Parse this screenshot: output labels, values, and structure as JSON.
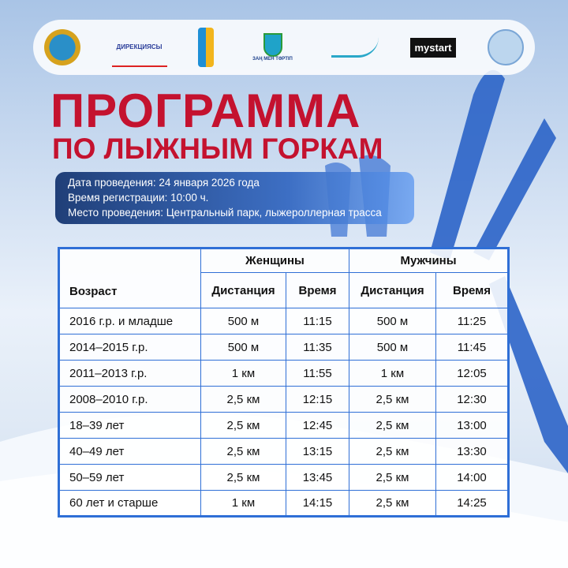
{
  "logos": [
    "Astana emblem",
    "ДИРЕКЦИЯСЫ",
    "snowflake sun",
    "ЗАҢ МЕН ТӘРТІП",
    "Cross Country Skiing Federation",
    "mystart",
    "federation seal"
  ],
  "logo_texts": {
    "direktsiya": "ДИРЕКЦИЯСЫ",
    "zan": "ЗАҢ МЕН ТӘРТІП",
    "mystart": "mystart"
  },
  "title": {
    "line1": "ПРОГРАММА",
    "line2": "ПО ЛЫЖНЫМ ГОРКАМ",
    "color": "#c4122f"
  },
  "info": {
    "date": "Дата проведения: 24 января 2026 года",
    "registration": "Время регистрации: 10:00 ч.",
    "place": "Место проведения: Центральный парк, лыжероллерная трасса"
  },
  "table": {
    "headers": {
      "age": "Возраст",
      "women": "Женщины",
      "men": "Мужчины",
      "distance": "Дистанция",
      "time": "Время"
    },
    "rows": [
      [
        "2016 г.р. и младше",
        "500 м",
        "11:15",
        "500 м",
        "11:25"
      ],
      [
        "2014–2015 г.р.",
        "500 м",
        "11:35",
        "500 м",
        "11:45"
      ],
      [
        "2011–2013 г.р.",
        "1 км",
        "11:55",
        "1 км",
        "12:05"
      ],
      [
        "2008–2010 г.р.",
        "2,5 км",
        "12:15",
        "2,5 км",
        "12:30"
      ],
      [
        "18–39 лет",
        "2,5 км",
        "12:45",
        "2,5 км",
        "13:00"
      ],
      [
        "40–49 лет",
        "2,5 км",
        "13:15",
        "2,5 км",
        "13:30"
      ],
      [
        "50–59 лет",
        "2,5 км",
        "13:45",
        "2,5 км",
        "14:00"
      ],
      [
        "60 лет и старше",
        "1 км",
        "14:15",
        "2,5 км",
        "14:25"
      ]
    ],
    "border_color": "#2f6fd6"
  }
}
